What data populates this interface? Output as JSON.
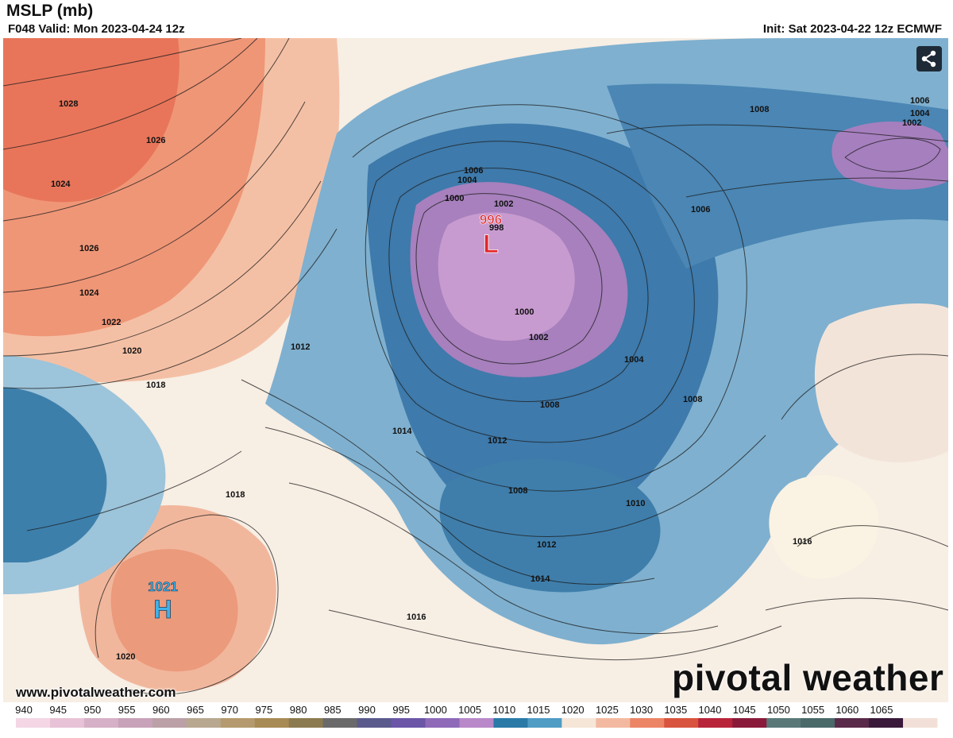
{
  "header": {
    "title": "MSLP (mb)",
    "valid": "F048 Valid: Mon 2023-04-24 12z",
    "init": "Init: Sat 2023-04-22 12z ECMWF"
  },
  "map": {
    "lows": [
      {
        "value": "996",
        "letter": "L",
        "color": "#e2262a"
      }
    ],
    "highs": [
      {
        "value": "1021",
        "letter": "H",
        "color": "#3fb3ea"
      }
    ],
    "contour_labels": [
      "1028",
      "1026",
      "1024",
      "1026",
      "1024",
      "1022",
      "1020",
      "1018",
      "1012",
      "1014",
      "1018",
      "1020",
      "1016",
      "1006",
      "1004",
      "1000",
      "1002",
      "998",
      "1000",
      "1002",
      "1004",
      "1008",
      "1008",
      "1012",
      "1008",
      "1010",
      "1012",
      "1014",
      "1016",
      "1008",
      "1006",
      "1006",
      "1004",
      "1002",
      "1016"
    ]
  },
  "branding": {
    "url": "www.pivotalweather.com",
    "logo_text": "pivotal weather"
  },
  "scale": {
    "labels": [
      "940",
      "945",
      "950",
      "955",
      "960",
      "965",
      "970",
      "975",
      "980",
      "985",
      "990",
      "995",
      "1000",
      "1005",
      "1010",
      "1015",
      "1020",
      "1025",
      "1030",
      "1035",
      "1040",
      "1045",
      "1050",
      "1055",
      "1060",
      "1065"
    ],
    "colors": [
      "#f4d6e4",
      "#e8c2d6",
      "#d6b0c6",
      "#c8a2b8",
      "#bba0a8",
      "#b8a890",
      "#b49a6e",
      "#a88a55",
      "#8c7a50",
      "#6a6a6a",
      "#5b5a8c",
      "#6b56a8",
      "#8e6ab8",
      "#b888c8",
      "#2a7aa8",
      "#4f9cc4",
      "#f6e6d8",
      "#f3b9a0",
      "#ec8466",
      "#d9543e",
      "#b8243a",
      "#8a1a3a",
      "#5a7878",
      "#4a6a6a",
      "#5a2a4a",
      "#3a1a3a",
      "#f2e0d8"
    ]
  },
  "share_icon": "share-icon"
}
